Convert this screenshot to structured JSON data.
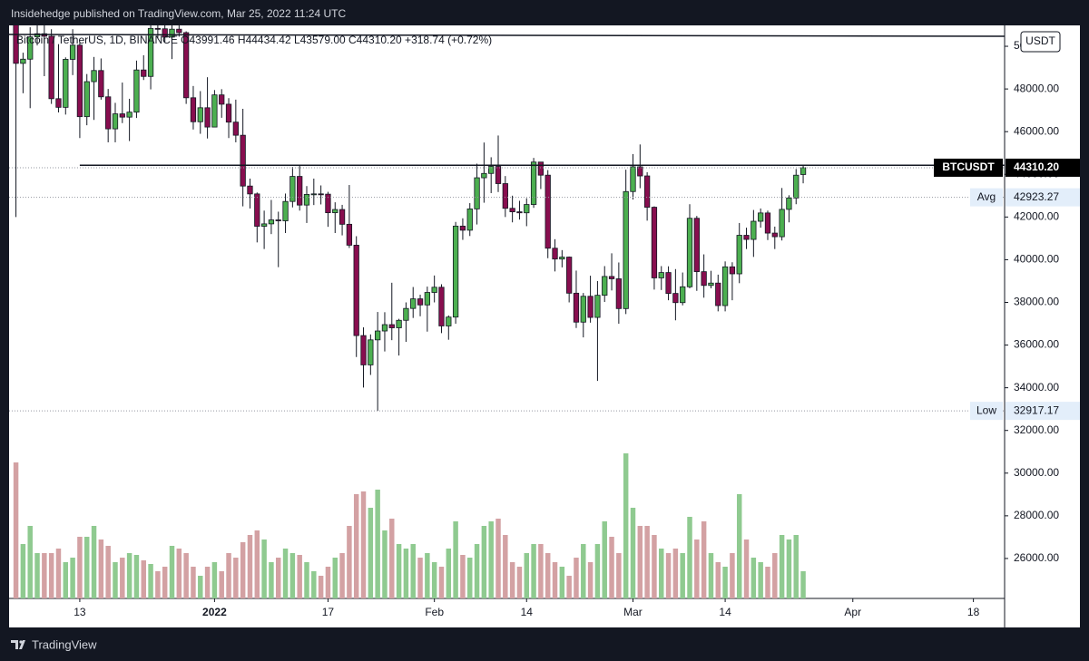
{
  "header": "Insidehedge published on TradingView.com, Mar 25, 2022 11:24 UTC",
  "footer": "TradingView",
  "chart_data": {
    "type": "candlestick",
    "legend": "Bitcoin / TetherUS, 1D, BINANCE  O43991.46 H44434.42 L43579.00 C44310.20 +318.74 (+0.72%)",
    "currency": "USDT",
    "up_color": "#4caf50",
    "down_color": "#880e4f",
    "volume_up_color": "#8fca90",
    "volume_down_color": "#d3a1a3",
    "open": [
      53580,
      49200,
      49396,
      50441,
      50588,
      50471,
      47545,
      47140,
      49389,
      50053,
      46702,
      48343,
      48864,
      47632,
      46131,
      46834,
      46681,
      46914,
      48890,
      48588,
      50838,
      50820,
      50428,
      50801,
      50640,
      47588,
      46464,
      47120,
      46216,
      47722,
      47286,
      46446,
      45832,
      43451,
      43082,
      41566,
      41679,
      41864,
      41822,
      42729,
      43902,
      42560,
      43059,
      43084,
      43071,
      42201,
      42352,
      41660,
      40680,
      36445,
      35071,
      36244,
      36660,
      36958,
      36809,
      37160,
      37716,
      38166,
      37881,
      38466,
      38709,
      36896,
      37311,
      41574,
      41382,
      42380,
      43839,
      44042,
      44372,
      43565,
      42407,
      42244,
      42197,
      42586,
      44575,
      43961,
      40538,
      40031,
      40122,
      38431,
      37075,
      38286,
      37296,
      38333,
      39214,
      39105,
      37709,
      43193,
      44354,
      43925,
      42458,
      39148,
      39398,
      38420,
      37989,
      38731,
      41941,
      39439,
      38794,
      38904,
      37850,
      39666,
      39338,
      41143,
      40951,
      41801,
      42190,
      41247,
      41077,
      42358,
      42892,
      43991.46
    ],
    "high": [
      53904,
      49700,
      50890,
      51940,
      51200,
      50800,
      50100,
      49480,
      50800,
      50190,
      48700,
      49500,
      49430,
      48000,
      47350,
      48300,
      47540,
      49330,
      49580,
      51370,
      51800,
      51200,
      51280,
      52000,
      50700,
      48140,
      47900,
      48550,
      47950,
      47990,
      47570,
      47500,
      47070,
      43800,
      43150,
      42300,
      42800,
      42250,
      43100,
      44350,
      44450,
      43450,
      43800,
      43480,
      43180,
      42690,
      42570,
      43500,
      41100,
      36830,
      36500,
      37550,
      37540,
      38920,
      37230,
      38000,
      38720,
      38360,
      38740,
      39260,
      38850,
      37390,
      41770,
      41940,
      42650,
      44500,
      45490,
      44800,
      45820,
      43920,
      43000,
      42760,
      42880,
      44770,
      44580,
      44200,
      40960,
      40450,
      40150,
      39490,
      38440,
      39250,
      39000,
      39700,
      40300,
      39870,
      44220,
      44950,
      45400,
      44100,
      42500,
      39700,
      39690,
      39560,
      39400,
      42600,
      42050,
      40250,
      39480,
      39300,
      39920,
      39880,
      41720,
      41500,
      42330,
      42400,
      42300,
      41550,
      43360,
      43020,
      44250,
      44434.42
    ],
    "low": [
      42000,
      47800,
      47100,
      50040,
      48600,
      47300,
      46900,
      46800,
      48650,
      45700,
      46300,
      46550,
      47500,
      45500,
      45500,
      46400,
      45560,
      46640,
      48420,
      47980,
      50390,
      50200,
      49400,
      50450,
      47300,
      46100,
      45900,
      45680,
      46200,
      46650,
      45700,
      45500,
      42500,
      42400,
      40810,
      40500,
      41200,
      39650,
      41250,
      42450,
      42300,
      41720,
      42560,
      42590,
      41540,
      41250,
      41140,
      40550,
      35440,
      34010,
      34600,
      32917.17,
      35700,
      36230,
      35510,
      36150,
      37270,
      37350,
      36630,
      38000,
      36560,
      36250,
      37000,
      40930,
      41110,
      41650,
      42670,
      43120,
      43170,
      42000,
      41750,
      41880,
      41570,
      42430,
      43310,
      40070,
      39450,
      39640,
      38000,
      36800,
      36360,
      37050,
      34320,
      38020,
      38560,
      37000,
      37450,
      42820,
      43350,
      41830,
      38600,
      38580,
      38100,
      37160,
      37860,
      38660,
      38540,
      38220,
      38660,
      37580,
      37580,
      38100,
      38900,
      40500,
      40130,
      41500,
      40920,
      40500,
      40900,
      41750,
      42600,
      43579.0
    ],
    "close": [
      49200,
      49396,
      50441,
      50588,
      50471,
      47545,
      47140,
      49389,
      50053,
      46702,
      48343,
      48864,
      47632,
      46131,
      46834,
      46681,
      46914,
      48890,
      48588,
      50838,
      50820,
      50428,
      50801,
      50640,
      47588,
      46464,
      47120,
      46216,
      47722,
      47286,
      46446,
      45832,
      43451,
      43082,
      41566,
      41679,
      41864,
      41822,
      42729,
      43902,
      42560,
      43059,
      43084,
      43071,
      42201,
      42352,
      41660,
      40680,
      36445,
      35071,
      36244,
      36660,
      36958,
      36809,
      37160,
      37716,
      38166,
      37881,
      38466,
      38709,
      36896,
      37311,
      41574,
      41382,
      42380,
      43839,
      44042,
      44372,
      43565,
      42407,
      42244,
      42197,
      42586,
      44575,
      43961,
      40538,
      40031,
      40122,
      38431,
      37075,
      38286,
      37296,
      38333,
      39214,
      39105,
      37709,
      43193,
      44354,
      43925,
      42458,
      39148,
      39398,
      38420,
      37989,
      38731,
      41941,
      39439,
      38794,
      38904,
      37850,
      39666,
      39338,
      41143,
      40951,
      41801,
      42190,
      41247,
      41077,
      42358,
      42892,
      43960,
      44310.2
    ],
    "volume": [
      150,
      60,
      80,
      50,
      50,
      50,
      55,
      40,
      45,
      68,
      68,
      80,
      65,
      58,
      40,
      45,
      50,
      48,
      42,
      38,
      30,
      35,
      58,
      55,
      50,
      35,
      25,
      35,
      40,
      30,
      50,
      45,
      62,
      70,
      75,
      65,
      40,
      45,
      55,
      50,
      48,
      40,
      30,
      25,
      35,
      45,
      50,
      80,
      115,
      118,
      100,
      120,
      75,
      88,
      60,
      55,
      60,
      45,
      50,
      40,
      35,
      55,
      85,
      48,
      45,
      60,
      80,
      85,
      88,
      70,
      40,
      35,
      50,
      60,
      60,
      50,
      40,
      35,
      25,
      45,
      60,
      40,
      60,
      85,
      68,
      50,
      160,
      100,
      80,
      80,
      70,
      55,
      50,
      55,
      50,
      90,
      65,
      85,
      50,
      40,
      35,
      50,
      115,
      65,
      45,
      40,
      35,
      50,
      70,
      65,
      70,
      30
    ],
    "vlim": [
      0,
      170
    ],
    "xlim": [
      -0.97,
      139.4
    ],
    "xticks": [
      {
        "value": 9,
        "label": "13"
      },
      {
        "value": 28,
        "label": "2022"
      },
      {
        "value": 44,
        "label": "17"
      },
      {
        "value": 59,
        "label": "Feb"
      },
      {
        "value": 72,
        "label": "14"
      },
      {
        "value": 87,
        "label": "Mar"
      },
      {
        "value": 100,
        "label": "14"
      },
      {
        "value": 118,
        "label": "Apr"
      },
      {
        "value": 135,
        "label": "18"
      }
    ],
    "ylim": [
      24128,
      50979
    ],
    "yticks": [
      {
        "value": 26000,
        "label": "26000.00"
      },
      {
        "value": 28000,
        "label": "28000.00"
      },
      {
        "value": 30000,
        "label": "30000.00"
      },
      {
        "value": 32000,
        "label": "32000.00"
      },
      {
        "value": 34000,
        "label": "34000.00"
      },
      {
        "value": 36000,
        "label": "36000.00"
      },
      {
        "value": 38000,
        "label": "38000.00"
      },
      {
        "value": 40000,
        "label": "40000.00"
      },
      {
        "value": 42000,
        "label": "42000.00"
      },
      {
        "value": 44000,
        "label": "44000.00"
      },
      {
        "value": 46000,
        "label": "46000.00"
      },
      {
        "value": 48000,
        "label": "48000.00"
      },
      {
        "value": 50000,
        "label": "50000.00"
      }
    ],
    "lines": [
      {
        "x": [
          -0.97,
          139.4
        ],
        "y": [
          50553,
          50468
        ]
      },
      {
        "x": [
          9,
          139.4
        ],
        "y": [
          44426,
          44426
        ]
      }
    ],
    "price_markers": [
      {
        "name": "BTCUSDT",
        "value": 44310.2,
        "value_label": "44310.20",
        "style": "last"
      },
      {
        "name": "Avg",
        "value": 42923.27,
        "value_label": "42923.27",
        "style": "stat"
      },
      {
        "name": "Low",
        "value": 32917.17,
        "value_label": "32917.17",
        "style": "stat"
      }
    ]
  }
}
